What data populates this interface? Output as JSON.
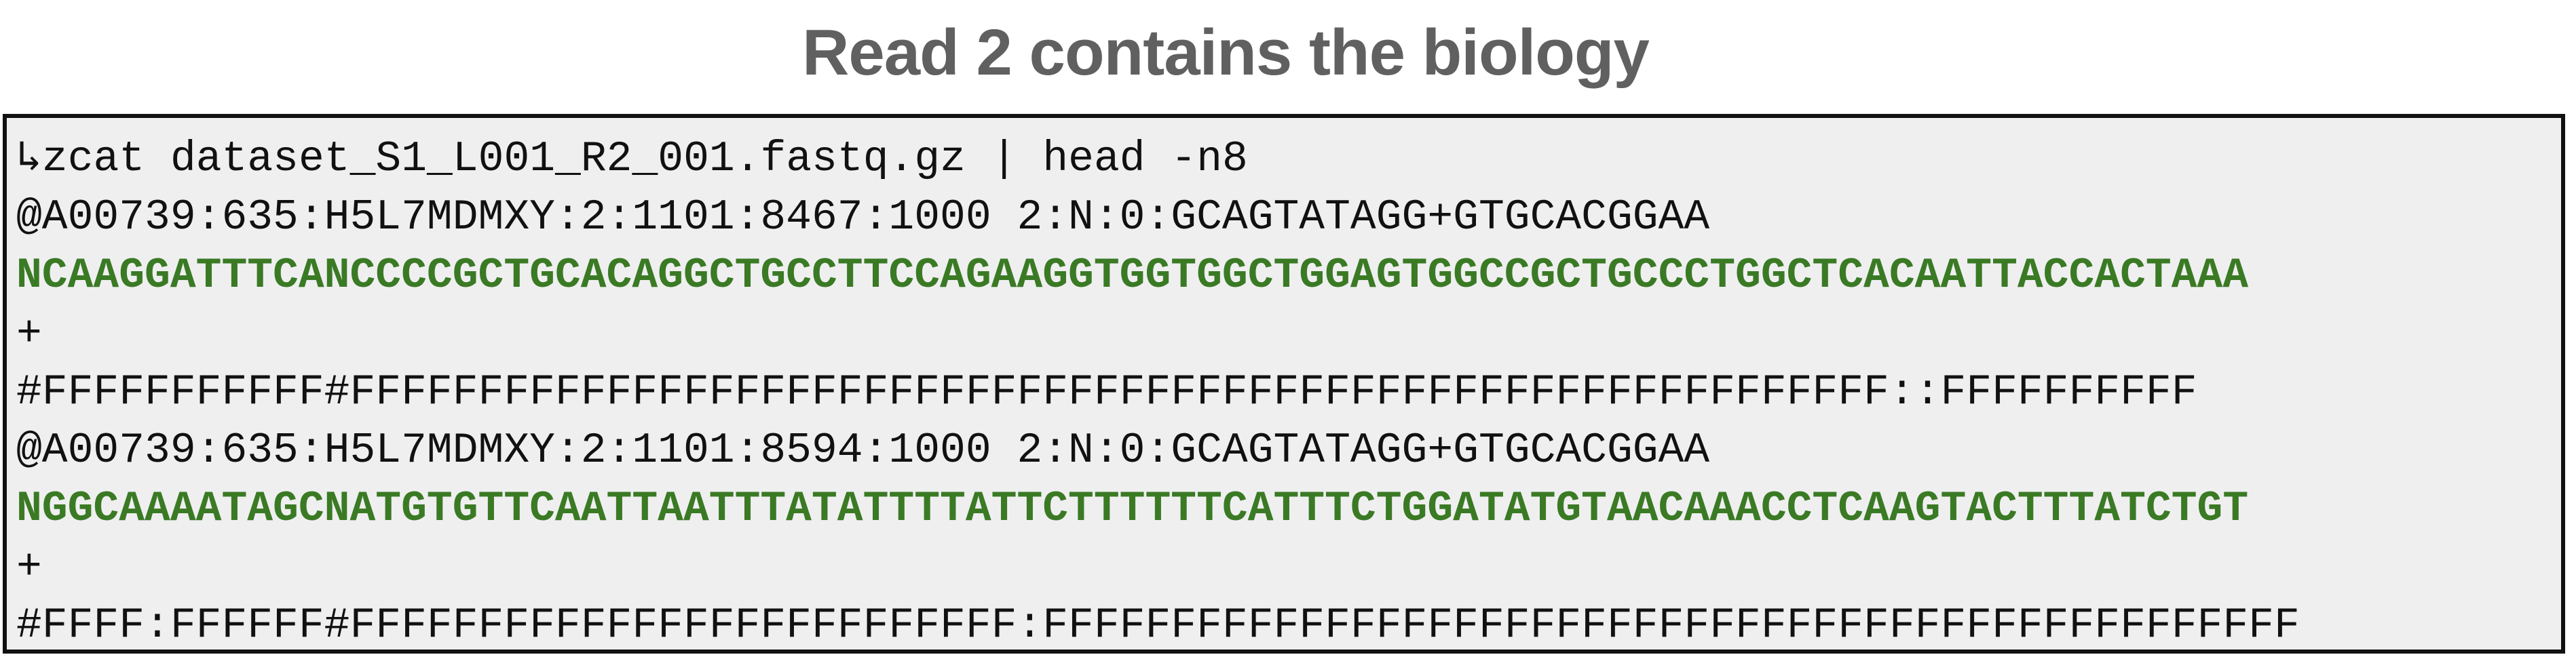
{
  "title": "Read 2 contains the biology",
  "colors": {
    "title": "#606060",
    "terminal_background": "#efeff0",
    "terminal_border": "#111111",
    "text": "#111111",
    "sequence": "#3a7a24"
  },
  "terminal": {
    "command": "↳zcat dataset_S1_L001_R2_001.fastq.gz | head -n8",
    "lines": [
      "@A00739:635:H5L7MDMXY:2:1101:8467:1000 2:N:0:GCAGTATAGG+GTGCACGGAA",
      "NCAAGGATTTCANCCCCGCTGCACAGGCTGCCTTCCAGAAGGTGGTGGCTGGAGTGGCCGCTGCCCTGGCTCACAATTACCACTAAA",
      "+",
      "#FFFFFFFFFFF#FFFFFFFFFFFFFFFFFFFFFFFFFFFFFFFFFFFFFFFFFFFFFFFFFFFFFFFFFFFF::FFFFFFFFFF",
      "@A00739:635:H5L7MDMXY:2:1101:8594:1000 2:N:0:GCAGTATAGG+GTGCACGGAA",
      "NGGCAAAATAGCNATGTGTTCAATTAATTTATATTTTATTCTTTTTTCATTTCTGGATATGTAACAAACCTCAAGTACTTTATCTGT",
      "+",
      "#FFFF:FFFFFF#FFFFFFFFFFFFFFFFFFFFFFFFFF:FFFFFFFFFFFFFFFFFFFFFFFFFFFFFFFFFFFFFFFFFFFFFFFFF"
    ]
  }
}
